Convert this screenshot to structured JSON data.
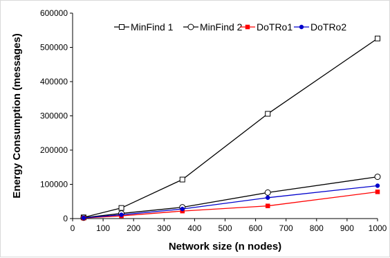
{
  "chart_data": {
    "type": "line",
    "title": "",
    "xlabel": "Network size (n nodes)",
    "ylabel": "Energy Consumption (messages)",
    "xlim": [
      0,
      1000
    ],
    "ylim": [
      0,
      600000
    ],
    "x_ticks": [
      0,
      100,
      200,
      300,
      400,
      500,
      600,
      700,
      800,
      900,
      1000
    ],
    "y_ticks": [
      0,
      100000,
      200000,
      300000,
      400000,
      500000,
      600000
    ],
    "grid": false,
    "legend_position": "top-right",
    "x": [
      36,
      160,
      360,
      640,
      1000
    ],
    "series": [
      {
        "name": "MinFind 1",
        "color": "#000000",
        "marker": "open-square",
        "values": [
          3500,
          31000,
          114000,
          306000,
          526000
        ]
      },
      {
        "name": "MinFind 2",
        "color": "#000000",
        "marker": "open-circle",
        "values": [
          2500,
          15000,
          33000,
          76000,
          122000
        ]
      },
      {
        "name": "DoTRo1",
        "color": "#ff0000",
        "marker": "filled-square",
        "values": [
          1500,
          8000,
          22000,
          37000,
          78000
        ]
      },
      {
        "name": "DoTRo2",
        "color": "#0000cc",
        "marker": "filled-circle",
        "values": [
          2000,
          11000,
          28000,
          61000,
          96000
        ]
      }
    ]
  }
}
